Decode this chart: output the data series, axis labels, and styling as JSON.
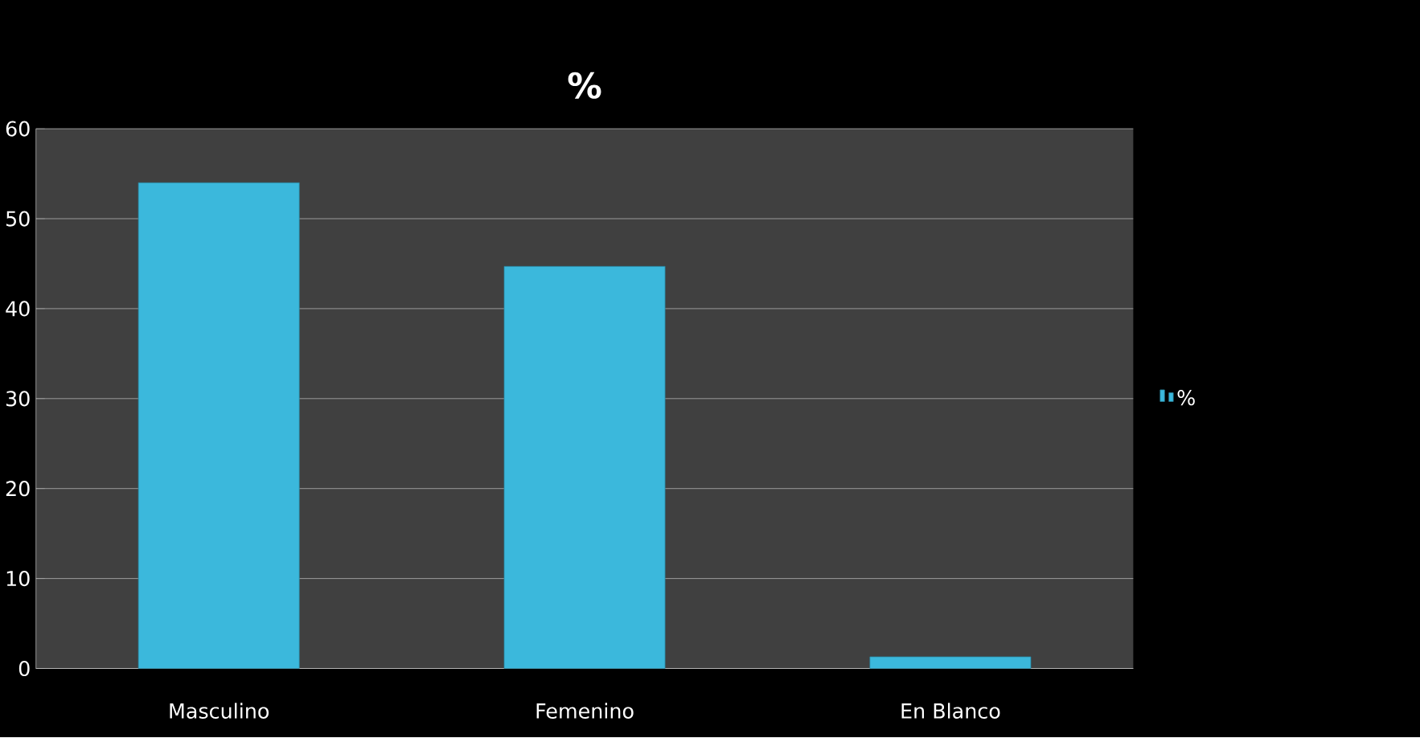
{
  "chart_data": {
    "type": "bar",
    "title": "%",
    "categories": [
      "Masculino",
      "Femenino",
      "En Blanco"
    ],
    "series": [
      {
        "name": "%",
        "color": "#3bb8dc",
        "values": [
          54,
          44.7,
          1.3
        ]
      }
    ],
    "ylim": [
      0,
      60
    ],
    "yticks": [
      0,
      10,
      20,
      30,
      40,
      50,
      60
    ],
    "grid": "y",
    "legend": "right"
  }
}
